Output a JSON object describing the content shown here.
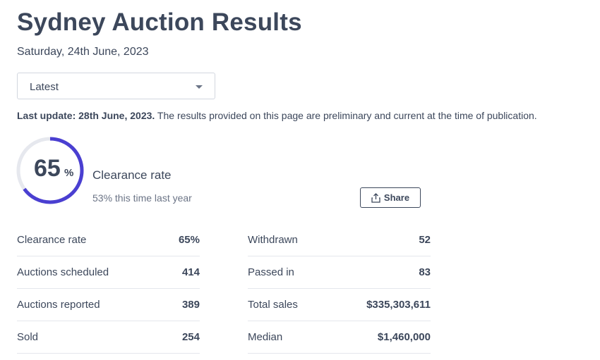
{
  "header": {
    "title": "Sydney Auction Results",
    "date": "Saturday, 24th June, 2023"
  },
  "filter": {
    "selected": "Latest"
  },
  "notice": {
    "bold": "Last update: 28th June, 2023.",
    "text": " The results provided on this page are preliminary and current at the time of publication."
  },
  "clearance": {
    "value": "65",
    "unit": "%",
    "fraction": 0.65,
    "label": "Clearance rate",
    "comparison": "53% this time last year",
    "ring_color": "#4a3fd1",
    "track_color": "#e6e8ee"
  },
  "share": {
    "label": "Share",
    "icon": "share-icon"
  },
  "stats_left": [
    {
      "label": "Clearance rate",
      "value": "65%"
    },
    {
      "label": "Auctions scheduled",
      "value": "414"
    },
    {
      "label": "Auctions reported",
      "value": "389"
    },
    {
      "label": "Sold",
      "value": "254"
    }
  ],
  "stats_right": [
    {
      "label": "Withdrawn",
      "value": "52"
    },
    {
      "label": "Passed in",
      "value": "83"
    },
    {
      "label": "Total sales",
      "value": "$335,303,611"
    },
    {
      "label": "Median",
      "value": "$1,460,000"
    }
  ]
}
